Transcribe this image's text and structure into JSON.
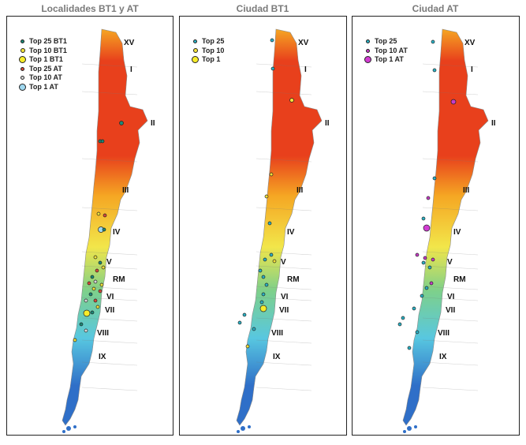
{
  "panels": [
    {
      "id": "p1",
      "title": "Localidades BT1 y AT",
      "legend": [
        {
          "label": "Top 25 BT1",
          "color": "#1a8a78",
          "size": "small"
        },
        {
          "label": "Top 10 BT1",
          "color": "#f2e33a",
          "size": "medium"
        },
        {
          "label": "Top 1 BT1",
          "color": "#f7ec2a",
          "size": "large"
        },
        {
          "label": "Top 25 AT",
          "color": "#d94a3a",
          "size": "small"
        },
        {
          "label": "Top 10 AT",
          "color": "#d9d9d9",
          "size": "small"
        },
        {
          "label": "Top 1 AT",
          "color": "#9fd8f0",
          "size": "large"
        }
      ]
    },
    {
      "id": "p2",
      "title": "Ciudad BT1",
      "legend": [
        {
          "label": "Top 25",
          "color": "#2ab4c8",
          "size": "small"
        },
        {
          "label": "Top 10",
          "color": "#f5e23a",
          "size": "medium"
        },
        {
          "label": "Top 1",
          "color": "#f7ec2a",
          "size": "large"
        }
      ]
    },
    {
      "id": "p3",
      "title": "Ciudad AT",
      "legend": [
        {
          "label": "Top 25",
          "color": "#2ab4c8",
          "size": "small"
        },
        {
          "label": "Top 10 AT",
          "color": "#c83cc8",
          "size": "small"
        },
        {
          "label": "Top 1 AT",
          "color": "#d23cd2",
          "size": "large"
        }
      ]
    }
  ],
  "regions": [
    "XV",
    "I",
    "II",
    "III",
    "IV",
    "V",
    "RM",
    "VI",
    "VII",
    "VIII",
    "IX"
  ],
  "colors": {
    "north_hot": "#e8401c",
    "mid_warm": "#f5a623",
    "center": "#f2e64a",
    "south_green": "#7ed08a",
    "south_cool": "#58c7e0",
    "far_south": "#2f6fc8"
  }
}
